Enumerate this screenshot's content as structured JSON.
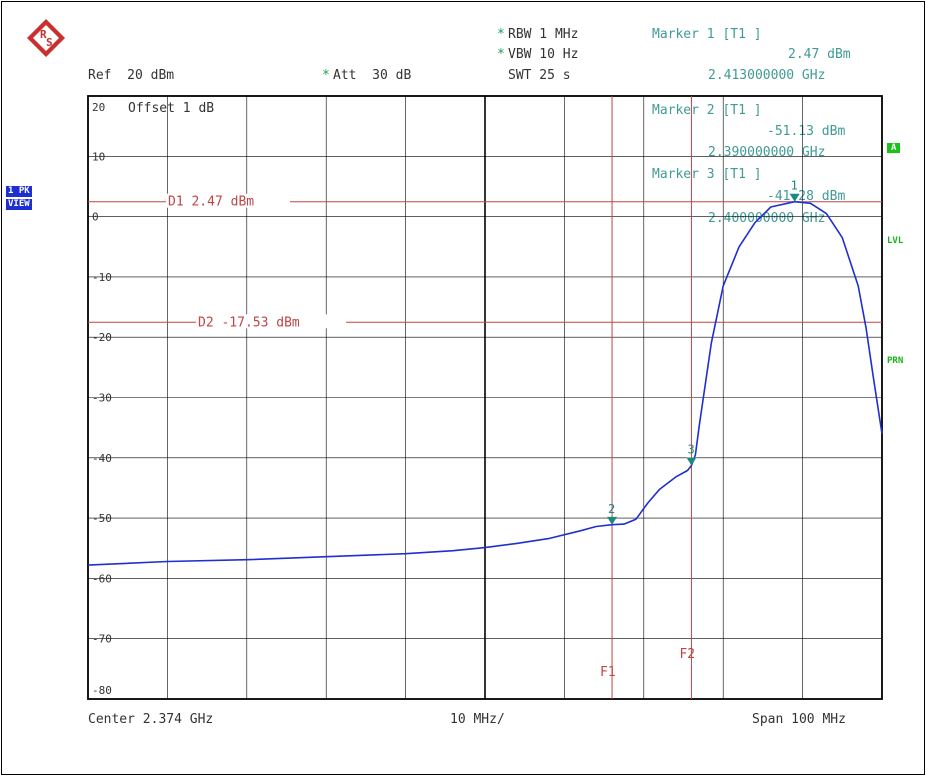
{
  "header": {
    "ref": "Ref  20 dBm",
    "att": "Att  30 dB",
    "rbw": "RBW 1 MHz",
    "vbw": "VBW 10 Hz",
    "swt": "SWT 25 s",
    "star": "*"
  },
  "markers": {
    "m1": {
      "label": "Marker 1 [T1 ]",
      "level": "2.47 dBm",
      "freq": "2.413000000 GHz"
    },
    "m2": {
      "label": "Marker 2 [T1 ]",
      "level": "-51.13 dBm",
      "freq": "2.390000000 GHz"
    },
    "m3": {
      "label": "Marker 3 [T1 ]",
      "level": "-41.28 dBm",
      "freq": "2.400000000 GHz"
    }
  },
  "side": {
    "trace_label": "1 PK",
    "view_label": "VIEW"
  },
  "right": {
    "a": "A",
    "lvl": "LVL",
    "prn": "PRN"
  },
  "footer": {
    "center": "Center 2.374 GHz",
    "div": "10 MHz/",
    "span": "Span 100 MHz"
  },
  "colors": {
    "trace": "#1f2fd0",
    "line": "#c04545",
    "marker": "#1a8a80",
    "grid": "#000000",
    "teal": "#3f9b96"
  },
  "chart_data": {
    "type": "line",
    "title": "",
    "xlabel": "",
    "ylabel": "",
    "xlim": [
      2.324,
      2.424
    ],
    "ylim": [
      -80,
      20
    ],
    "x_unit": "GHz",
    "y_unit": "dBm",
    "grid": true,
    "ytick_labels": [
      "20",
      "10",
      "0",
      "-10",
      "-20",
      "-30",
      "-40",
      "-50",
      "-60",
      "-70",
      "-80"
    ],
    "offset_label": "Offset  1 dB",
    "series": [
      {
        "x": [
          2.324,
          2.334,
          2.344,
          2.354,
          2.364,
          2.37,
          2.374,
          2.378,
          2.382,
          2.386,
          2.388,
          2.39,
          2.3915,
          2.393,
          2.3945,
          2.396,
          2.398,
          2.3995,
          2.4,
          2.4005,
          2.401,
          2.4025,
          2.404,
          2.406,
          2.408,
          2.41,
          2.413,
          2.415,
          2.417,
          2.419,
          2.421,
          2.422,
          2.423,
          2.424
        ],
        "y": [
          -57.8,
          -57.2,
          -56.9,
          -56.4,
          -55.9,
          -55.4,
          -54.9,
          -54.2,
          -53.4,
          -52.1,
          -51.4,
          -51.1,
          -51.0,
          -50.2,
          -47.5,
          -45.2,
          -43.2,
          -42.1,
          -41.3,
          -39.5,
          -34.5,
          -21.0,
          -11.5,
          -5.0,
          -1.0,
          1.6,
          2.47,
          2.2,
          0.5,
          -3.5,
          -11.5,
          -18.5,
          -27.5,
          -36.0
        ]
      }
    ],
    "display_lines": [
      {
        "name": "D1",
        "value": 2.47,
        "label": "D1 2.47 dBm"
      },
      {
        "name": "D2",
        "value": -17.53,
        "label": "D2 -17.53 dBm"
      }
    ],
    "frequency_lines": [
      {
        "name": "F1",
        "x": 2.39
      },
      {
        "name": "F2",
        "x": 2.4
      }
    ],
    "marker_points": [
      {
        "id": "1",
        "x": 2.413,
        "y": 2.47
      },
      {
        "id": "2",
        "x": 2.39,
        "y": -51.13
      },
      {
        "id": "3",
        "x": 2.4,
        "y": -41.28
      }
    ]
  }
}
